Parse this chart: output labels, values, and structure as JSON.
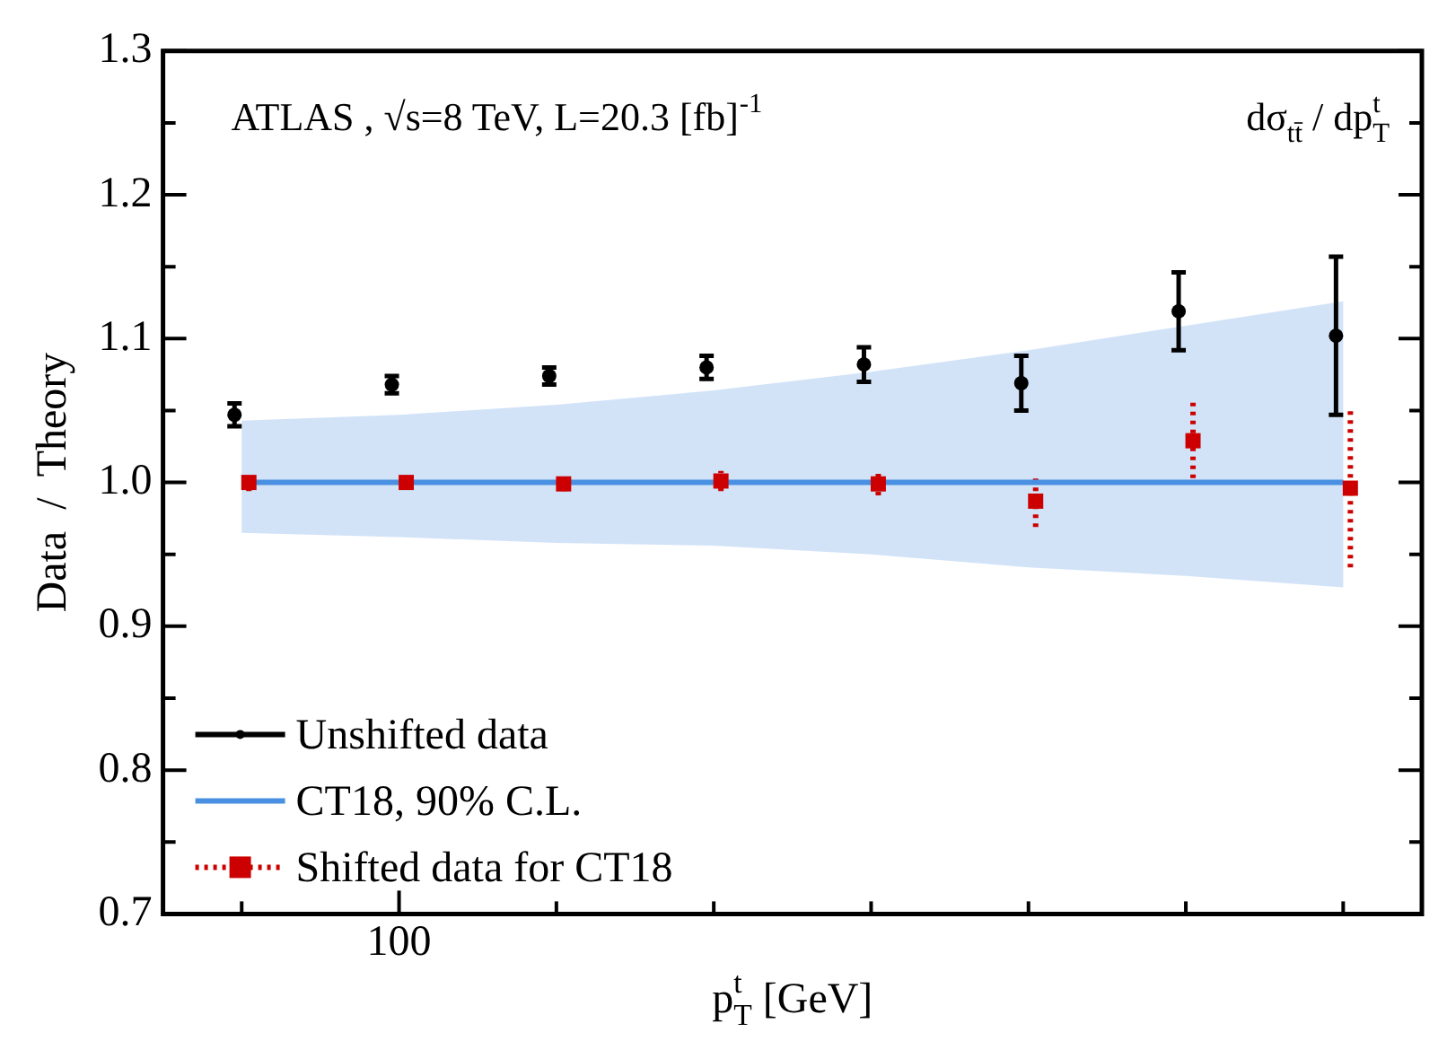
{
  "chart_data": {
    "type": "scatter",
    "annotations": [
      "ATLAS , √s=8 TeV, L=20.3 [fb]$^{-1}$",
      "dσ$_{tt̄}$ / dp$_{T}$$^{t}$"
    ],
    "xlabel": "p$_{T}$$^{t}$ [GeV]",
    "ylabel": "Data  /  Theory",
    "grid": false,
    "legend": "bottom left",
    "categories": [
      null,
      "100",
      null,
      null,
      null,
      null,
      null,
      null
    ],
    "ylim": [
      0.7,
      1.3
    ],
    "yticks": [
      {
        "value": 0.7,
        "label": "0.7"
      },
      {
        "value": 0.75,
        "label": null
      },
      {
        "value": 0.8,
        "label": "0.8"
      },
      {
        "value": 0.85,
        "label": null
      },
      {
        "value": 0.9,
        "label": "0.9"
      },
      {
        "value": 0.95,
        "label": null
      },
      {
        "value": 1,
        "label": "1.0"
      },
      {
        "value": 1.05,
        "label": null
      },
      {
        "value": 1.1,
        "label": "1.1"
      },
      {
        "value": 1.15,
        "label": null
      },
      {
        "value": 1.2,
        "label": "1.2"
      },
      {
        "value": 1.25,
        "label": null
      },
      {
        "value": 1.3,
        "label": "1.3"
      }
    ],
    "series": [
      {
        "name": "Unshifted data",
        "color": "#000000",
        "line_style": "solid",
        "values": [
          1.047,
          1.068,
          1.074,
          1.08,
          1.082,
          1.069,
          1.119,
          1.102
        ],
        "errors": [
          0.008,
          0.006,
          0.006,
          0.008,
          0.012,
          0.019,
          0.027,
          0.055
        ]
      },
      {
        "name": "CT18, 90% C.L.",
        "type": "line",
        "color": "#4a90e2",
        "marker": "none",
        "line_style": "solid",
        "values": [
          1,
          1,
          1,
          1,
          1,
          1,
          1,
          1
        ],
        "lower": [
          0.965,
          0.962,
          0.958,
          0.956,
          0.95,
          0.941,
          0.935,
          0.927
        ],
        "upper": [
          1.043,
          1.047,
          1.054,
          1.064,
          1.077,
          1.092,
          1.109,
          1.126
        ]
      },
      {
        "name": "Shifted data for CT18",
        "color": "#cc0000",
        "marker": "square",
        "line_style": "dotted",
        "values": [
          1,
          1,
          0.999,
          1.001,
          0.999,
          0.987,
          1.029,
          0.996
        ],
        "errors": [
          0.006,
          0.004,
          0.005,
          0.007,
          0.008,
          [
            0.969,
            1.006
          ],
          [
            1.003,
            1.058
          ],
          [
            0.941,
            1.05
          ]
        ]
      }
    ]
  }
}
